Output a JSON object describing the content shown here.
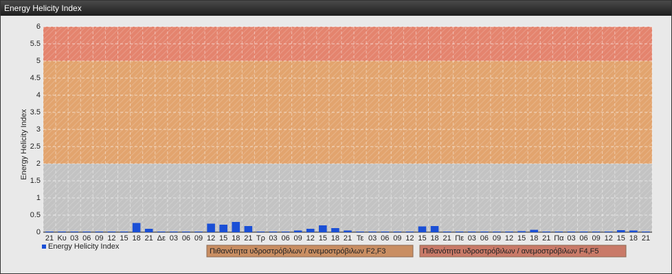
{
  "chart_data": {
    "type": "bar",
    "title": "Energy Helicity Index",
    "y_label": "Energy Helicity Index",
    "categories": [
      "21",
      "Κυ",
      "03",
      "06",
      "09",
      "12",
      "15",
      "18",
      "21",
      "Δε",
      "03",
      "06",
      "09",
      "12",
      "15",
      "18",
      "21",
      "Τρ",
      "03",
      "06",
      "09",
      "12",
      "15",
      "18",
      "21",
      "Τε",
      "03",
      "06",
      "09",
      "12",
      "15",
      "18",
      "21",
      "Πε",
      "03",
      "06",
      "09",
      "12",
      "15",
      "18",
      "21",
      "Πα",
      "03",
      "06",
      "09",
      "12",
      "15",
      "18",
      "21"
    ],
    "series": [
      {
        "name": "Energy Helicity Index",
        "color": "#1a4fd6",
        "values": [
          0.02,
          0.02,
          0.02,
          0.02,
          0.02,
          0.02,
          0.02,
          0.27,
          0.1,
          0.02,
          0.02,
          0.02,
          0.02,
          0.25,
          0.22,
          0.3,
          0.18,
          0.02,
          0.02,
          0.02,
          0.05,
          0.1,
          0.2,
          0.12,
          0.05,
          0.02,
          0.02,
          0.02,
          0.02,
          0.02,
          0.17,
          0.18,
          0.02,
          0.02,
          0.02,
          0.02,
          0.02,
          0.02,
          0.03,
          0.07,
          0.02,
          0.02,
          0.02,
          0.02,
          0.02,
          0.02,
          0.06,
          0.05,
          0.02
        ]
      }
    ],
    "ylim": [
      0,
      6
    ],
    "yticks": [
      0,
      0.5,
      1,
      1.5,
      2,
      2.5,
      3,
      3.5,
      4,
      4.5,
      5,
      5.5,
      6
    ],
    "grid": true,
    "bands": [
      {
        "from": 0,
        "to": 2,
        "color": "#c3c3c3"
      },
      {
        "from": 2,
        "to": 5,
        "color": "#e2a46e",
        "label": "Πιθανότητα υδροστρόβιλων / ανεμοστρόβιλων F2,F3",
        "legend_color": "#c98e62"
      },
      {
        "from": 5,
        "to": 6,
        "color": "#e4846e",
        "label": "Πιθανότητα υδροστρόβιλων / ανεμοστρόβιλων F4,F5",
        "legend_color": "#c97a68"
      }
    ]
  }
}
